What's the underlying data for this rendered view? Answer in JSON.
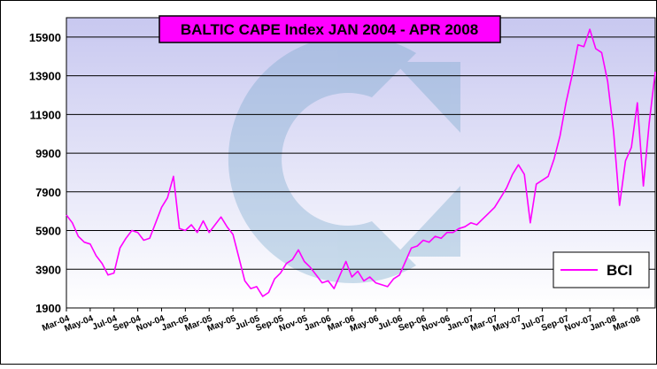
{
  "chart_data": {
    "type": "line",
    "title": "BALTIC CAPE Index JAN 2004 - APR 2008",
    "categories": [
      "Mar-04",
      null,
      null,
      null,
      "May-04",
      null,
      null,
      null,
      "Jul-04",
      null,
      null,
      null,
      "Sep-04",
      null,
      null,
      null,
      "Nov-04",
      null,
      null,
      null,
      "Jan-05",
      null,
      null,
      null,
      "Mar-05",
      null,
      null,
      null,
      "May-05",
      null,
      null,
      null,
      "Jul-05",
      null,
      null,
      null,
      "Sep-05",
      null,
      null,
      null,
      "Nov-05",
      null,
      null,
      null,
      "Jan-06",
      null,
      null,
      null,
      "Mar-06",
      null,
      null,
      null,
      "May-06",
      null,
      null,
      null,
      "Jul-06",
      null,
      null,
      null,
      "Sep-06",
      null,
      null,
      null,
      "Nov-06",
      null,
      null,
      null,
      "Jan-07",
      null,
      null,
      null,
      "Mar-07",
      null,
      null,
      null,
      "May-07",
      null,
      null,
      null,
      "Jul-07",
      null,
      null,
      null,
      "Sep-07",
      null,
      null,
      null,
      "Nov-07",
      null,
      null,
      null,
      "Jan-08",
      null,
      null,
      null,
      "Mar-08",
      null,
      null,
      null
    ],
    "series": [
      {
        "name": "BCI",
        "color": "#ff00ff",
        "values": [
          6700,
          6300,
          5600,
          5300,
          5200,
          4600,
          4200,
          3600,
          3700,
          5000,
          5500,
          5900,
          5800,
          5400,
          5500,
          6300,
          7100,
          7600,
          8700,
          6000,
          5900,
          6200,
          5800,
          6400,
          5800,
          6200,
          6600,
          6100,
          5700,
          4500,
          3300,
          2900,
          3000,
          2500,
          2700,
          3400,
          3700,
          4200,
          4400,
          4900,
          4300,
          4000,
          3600,
          3200,
          3300,
          2900,
          3600,
          4300,
          3500,
          3800,
          3300,
          3500,
          3200,
          3100,
          3000,
          3400,
          3600,
          4300,
          5000,
          5100,
          5400,
          5300,
          5600,
          5500,
          5800,
          5800,
          6000,
          6100,
          6300,
          6200,
          6500,
          6800,
          7100,
          7600,
          8100,
          8800,
          9300,
          8800,
          6300,
          8300,
          8500,
          8700,
          9600,
          10800,
          12500,
          13900,
          15500,
          15400,
          16300,
          15300,
          15100,
          13600,
          11000,
          7200,
          9500,
          10200,
          12500,
          8200,
          11500,
          14100
        ]
      }
    ],
    "ylim": [
      1900,
      16900
    ],
    "yticks": [
      1900,
      3900,
      5900,
      7900,
      9900,
      11900,
      13900,
      15900
    ],
    "grid": true,
    "legend": "lower right"
  }
}
